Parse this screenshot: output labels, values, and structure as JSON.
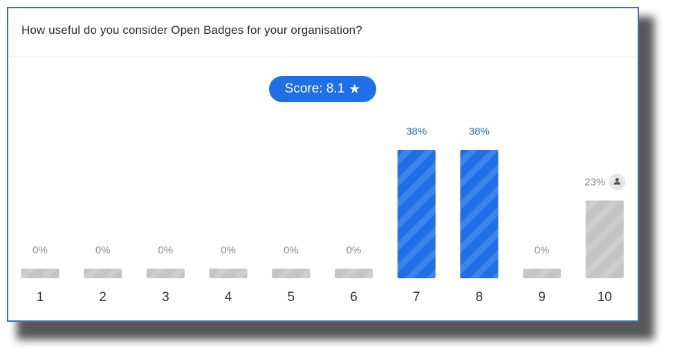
{
  "question": "How useful do you consider Open Badges for your organisation?",
  "score": {
    "label": "Score: 8.1",
    "icon": "star-icon"
  },
  "colors": {
    "accent": "#1f6fe6",
    "neutral": "#c4c4c4",
    "accent_text": "#1f6fe6",
    "neutral_text": "#8a8a8a"
  },
  "chart_data": {
    "type": "bar",
    "categories": [
      "1",
      "2",
      "3",
      "4",
      "5",
      "6",
      "7",
      "8",
      "9",
      "10"
    ],
    "values": [
      0,
      0,
      0,
      0,
      0,
      0,
      38,
      38,
      0,
      23
    ],
    "labels": [
      "0%",
      "0%",
      "0%",
      "0%",
      "0%",
      "0%",
      "38%",
      "38%",
      "0%",
      "23%"
    ],
    "highlighted": [
      "7",
      "8"
    ],
    "respondent_icon_on": "10",
    "ylim": [
      0,
      40
    ]
  }
}
